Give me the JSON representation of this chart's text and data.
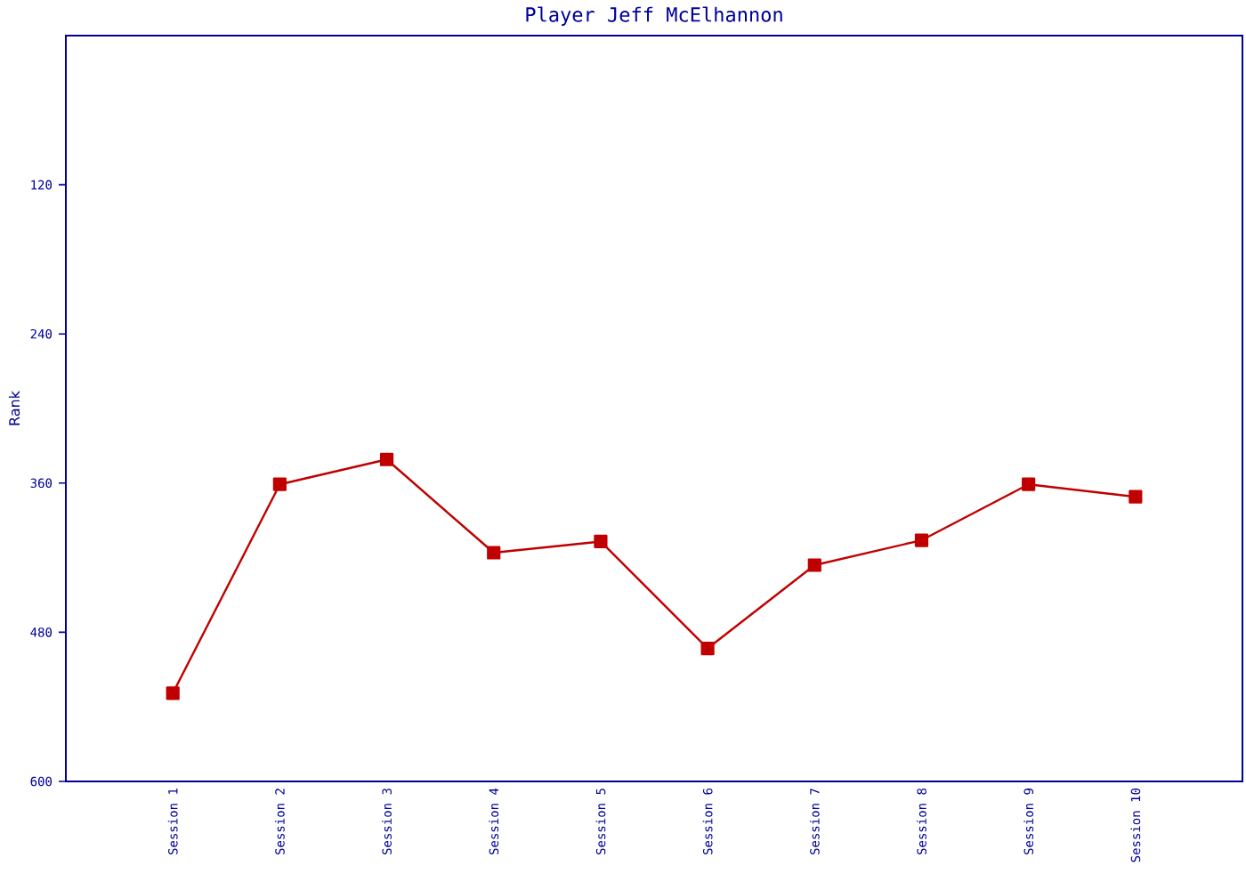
{
  "chart_data": {
    "type": "line",
    "title": "Player Jeff McElhannon",
    "ylabel": "Rank",
    "categories": [
      "Session 1",
      "Session 2",
      "Session 3",
      "Session 4",
      "Session 5",
      "Session 6",
      "Session 7",
      "Session 8",
      "Session 9",
      "Session 10"
    ],
    "series": [
      {
        "color": "#c00000",
        "values": [
          529,
          361,
          341,
          416,
          407,
          493,
          426,
          406,
          361,
          371
        ]
      }
    ],
    "ylim": [
      600,
      0
    ],
    "yticks": [
      120,
      240,
      360,
      480,
      600
    ],
    "grid": false,
    "marker": "square",
    "line_style": "solid"
  }
}
